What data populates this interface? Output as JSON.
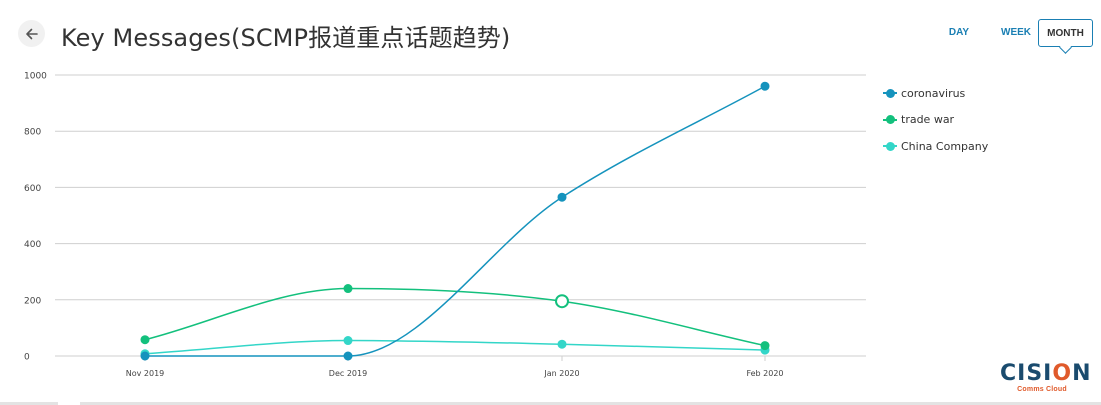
{
  "header": {
    "title": "Key Messages(SCMP报道重点话题趋势)",
    "back_icon": "arrow-left-icon"
  },
  "period_tabs": [
    {
      "label": "DAY",
      "selected": false
    },
    {
      "label": "WEEK",
      "selected": false
    },
    {
      "label": "MONTH",
      "selected": true
    }
  ],
  "chart_data": {
    "type": "line",
    "categories": [
      "Nov 2019",
      "Dec 2019",
      "Jan 2020",
      "Feb 2020"
    ],
    "y_ticks": [
      "1000",
      "800",
      "600",
      "400",
      "200",
      "0"
    ],
    "ylim": [
      0,
      1000
    ],
    "grid": true,
    "legend_position": "right",
    "series": [
      {
        "name": "coronavirus",
        "color": "#1593bd",
        "values": [
          0,
          0,
          565,
          960
        ]
      },
      {
        "name": "trade war",
        "color": "#13c07d",
        "values": [
          58,
          240,
          195,
          37
        ]
      },
      {
        "name": "China Company",
        "color": "#33d6c8",
        "values": [
          8,
          55,
          42,
          21
        ]
      }
    ],
    "highlighted_point": {
      "series": "trade war",
      "category": "Jan 2020"
    }
  },
  "logo": {
    "text_before": "CISI",
    "text_o": "O",
    "text_after": "N",
    "subtitle": "Comms Cloud"
  }
}
